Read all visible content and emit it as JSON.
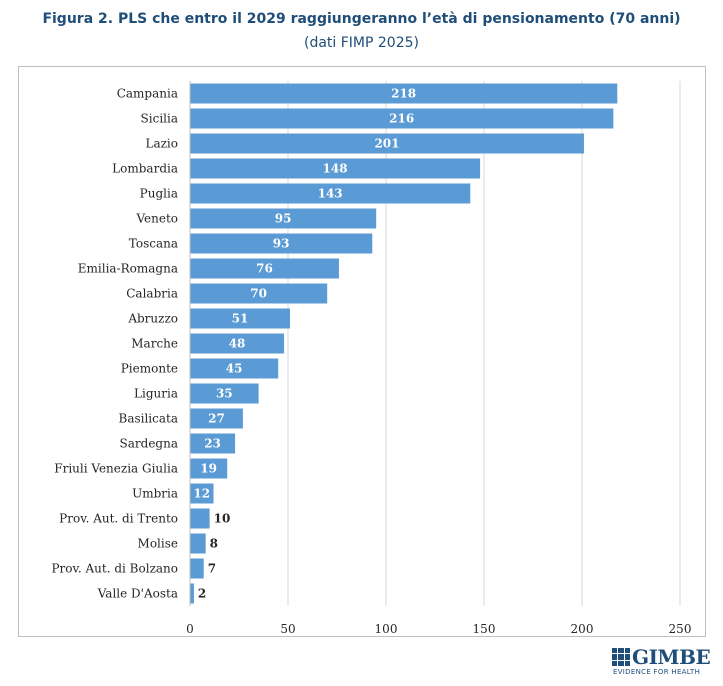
{
  "header": {
    "title": "Figura 2. PLS che entro il 2029 raggiungeranno l’età di pensionamento (70 anni)",
    "subtitle": "(dati FIMP 2025)"
  },
  "logo": {
    "name": "GIMBE",
    "tagline": "EVIDENCE FOR HEALTH",
    "color": "#1F4E79"
  },
  "chart_data": {
    "type": "bar",
    "orientation": "horizontal",
    "title": "Figura 2. PLS che entro il 2029 raggiungeranno l’età di pensionamento (70 anni)",
    "subtitle": "(dati FIMP 2025)",
    "xlabel": "",
    "ylabel": "",
    "xlim": [
      0,
      250
    ],
    "xticks": [
      0,
      50,
      100,
      150,
      200,
      250
    ],
    "grid": true,
    "legend": "none",
    "bar_color": "#5B9BD5",
    "categories": [
      "Campania",
      "Sicilia",
      "Lazio",
      "Lombardia",
      "Puglia",
      "Veneto",
      "Toscana",
      "Emilia-Romagna",
      "Calabria",
      "Abruzzo",
      "Marche",
      "Piemonte",
      "Liguria",
      "Basilicata",
      "Sardegna",
      "Friuli Venezia Giulia",
      "Umbria",
      "Prov. Aut. di Trento",
      "Molise",
      "Prov. Aut. di Bolzano",
      "Valle D'Aosta"
    ],
    "values": [
      218,
      216,
      201,
      148,
      143,
      95,
      93,
      76,
      70,
      51,
      48,
      45,
      35,
      27,
      23,
      19,
      12,
      10,
      8,
      7,
      2
    ]
  }
}
